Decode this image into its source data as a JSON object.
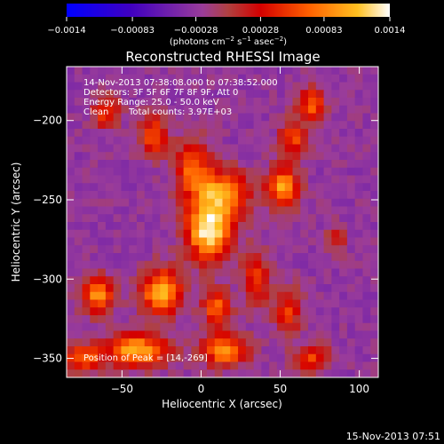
{
  "chart_data": {
    "type": "heatmap",
    "title": "Reconstructed RHESSI Image",
    "xlabel": "Heliocentric X (arcsec)",
    "ylabel": "Heliocentric Y (arcsec)",
    "xlim": [
      -85,
      112
    ],
    "ylim": [
      -362,
      -166
    ],
    "xticks": [
      -50,
      0,
      50,
      100
    ],
    "xtick_labels": [
      "−50",
      "0",
      "50",
      "100"
    ],
    "yticks": [
      -200,
      -250,
      -300,
      -350
    ],
    "ytick_labels": [
      "−200",
      "−250",
      "−300",
      "−350"
    ],
    "colorbar": {
      "label_prefix": "(photons cm",
      "label_exp1": "−2",
      "label_mid": " s",
      "label_exp2": "−1",
      "label_mid2": " asec",
      "label_exp3": "−2",
      "label_suffix": ")",
      "range": [
        -0.0014,
        0.0014
      ],
      "ticks": [
        -0.0014,
        -0.00083,
        -0.00028,
        0.00028,
        0.00083,
        0.0014
      ],
      "tick_labels": [
        "−0.0014",
        "−0.00083",
        "−0.00028",
        "0.00028",
        "0.00083",
        "0.0014"
      ]
    },
    "sources": [
      {
        "x": 5,
        "y": -269,
        "amp": 1.0,
        "sx": 10,
        "sy": 13
      },
      {
        "x": 14,
        "y": -245,
        "amp": 0.65,
        "sx": 12,
        "sy": 10
      },
      {
        "x": -5,
        "y": -230,
        "amp": 0.55,
        "sx": 8,
        "sy": 12
      },
      {
        "x": 52,
        "y": -242,
        "amp": 0.75,
        "sx": 7,
        "sy": 9
      },
      {
        "x": 58,
        "y": -212,
        "amp": 0.5,
        "sx": 6,
        "sy": 8
      },
      {
        "x": 70,
        "y": -190,
        "amp": 0.55,
        "sx": 6,
        "sy": 8
      },
      {
        "x": -25,
        "y": -308,
        "amp": 0.8,
        "sx": 9,
        "sy": 10
      },
      {
        "x": -65,
        "y": -310,
        "amp": 0.7,
        "sx": 7,
        "sy": 8
      },
      {
        "x": -30,
        "y": -210,
        "amp": 0.55,
        "sx": 6,
        "sy": 9
      },
      {
        "x": -60,
        "y": -195,
        "amp": 0.5,
        "sx": 6,
        "sy": 7
      },
      {
        "x": -40,
        "y": -345,
        "amp": 0.8,
        "sx": 14,
        "sy": 7
      },
      {
        "x": -75,
        "y": -350,
        "amp": 0.6,
        "sx": 8,
        "sy": 6
      },
      {
        "x": 15,
        "y": -345,
        "amp": 0.7,
        "sx": 10,
        "sy": 7
      },
      {
        "x": 35,
        "y": -300,
        "amp": 0.45,
        "sx": 6,
        "sy": 12
      },
      {
        "x": 55,
        "y": -320,
        "amp": 0.45,
        "sx": 6,
        "sy": 10
      },
      {
        "x": 70,
        "y": -350,
        "amp": 0.5,
        "sx": 8,
        "sy": 6
      },
      {
        "x": 10,
        "y": -318,
        "amp": 0.6,
        "sx": 6,
        "sy": 8
      },
      {
        "x": 85,
        "y": -275,
        "amp": 0.3,
        "sx": 5,
        "sy": 6
      }
    ],
    "annotations": {
      "time_range": "14-Nov-2013 07:38:08.000 to 07:38:52.000",
      "detectors": "Detectors: 3F 5F 6F 7F 8F 9F, Att 0",
      "energy": "Energy Range: 25.0 - 50.0 keV",
      "method": "Clean",
      "counts": "Total counts: 3.97E+03",
      "peak": "Position of Peak = [14,-269]"
    }
  },
  "footer": {
    "timestamp": "15-Nov-2013 07:51"
  }
}
